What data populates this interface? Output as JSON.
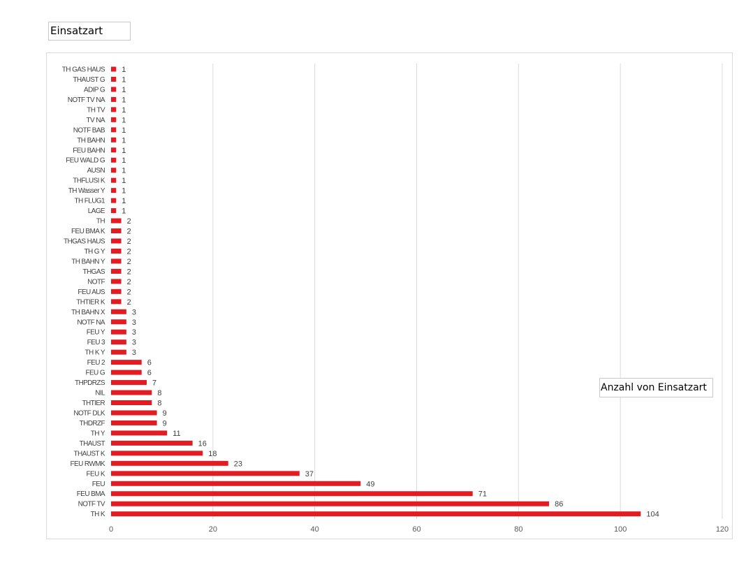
{
  "field_button": {
    "label": "Einsatzart"
  },
  "legend": {
    "label": "Anzahl von Einsatzart"
  },
  "colors": {
    "bar": "#e31b23",
    "grid": "#d9d9d9",
    "text": "#404040"
  },
  "chart_data": {
    "type": "bar",
    "orientation": "horizontal",
    "title": "",
    "xlabel": "",
    "ylabel": "",
    "xlim": [
      0,
      120
    ],
    "x_ticks": [
      0,
      20,
      40,
      60,
      80,
      100,
      120
    ],
    "grid": true,
    "legend_position": "right",
    "series": [
      {
        "name": "Anzahl von Einsatzart",
        "values": [
          1,
          1,
          1,
          1,
          1,
          1,
          1,
          1,
          1,
          1,
          1,
          1,
          1,
          1,
          1,
          2,
          2,
          2,
          2,
          2,
          2,
          2,
          2,
          2,
          3,
          3,
          3,
          3,
          3,
          6,
          6,
          7,
          8,
          8,
          9,
          9,
          11,
          16,
          18,
          23,
          37,
          49,
          71,
          86,
          104
        ]
      }
    ],
    "categories": [
      "TH GAS HAUS",
      "THAUST G",
      "ADIP G",
      "NOTF TV NA",
      "TH TV",
      "TV NA",
      "NOTF BAB",
      "TH BAHN",
      "FEU BAHN",
      "FEU WALD G",
      "AUSN",
      "THFLUSI K",
      "TH Wasser Y",
      "TH FLUG1",
      "LAGE",
      "TH",
      "FEU BMA K",
      "THGAS HAUS",
      "TH G Y",
      "TH BAHN Y",
      "THGAS",
      "NOTF",
      "FEU AUS",
      "THTIER K",
      "TH BAHN X",
      "NOTF NA",
      "FEU Y",
      "FEU 3",
      "TH K Y",
      "FEU 2",
      "FEU G",
      "THPDRZS",
      "NIL",
      "THTIER",
      "NOTF DLK",
      "THDRZF",
      "TH Y",
      "THAUST",
      "THAUST K",
      "FEU RWMK",
      "FEU K",
      "FEU",
      "FEU BMA",
      "NOTF TV",
      "TH K"
    ]
  }
}
